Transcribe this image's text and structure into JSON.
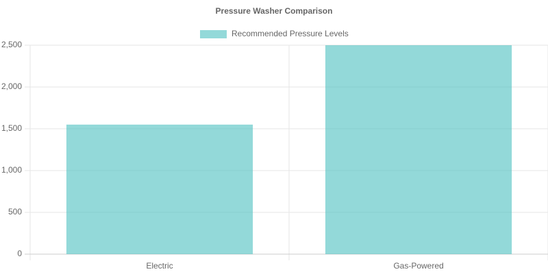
{
  "chart_data": {
    "type": "bar",
    "title": "Pressure Washer Comparison",
    "categories": [
      "Electric",
      "Gas-Powered"
    ],
    "series": [
      {
        "name": "Recommended Pressure Levels",
        "color": "rgba(75, 192, 192, 0.6)",
        "values": [
          1550,
          2500
        ]
      }
    ],
    "ylim": [
      0,
      2500
    ],
    "yticks": [
      0,
      500,
      {
        "value": 1000,
        "label": "1,000"
      },
      {
        "value": 1500,
        "label": "1,500"
      },
      {
        "value": 2000,
        "label": "2,000"
      },
      {
        "value": 2500,
        "label": "2,500"
      }
    ],
    "grid": true
  }
}
